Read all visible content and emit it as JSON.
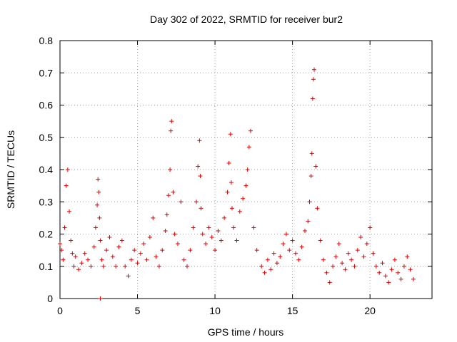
{
  "chart_data": {
    "type": "scatter",
    "title": "Day 302 of 2022, SRMTID for receiver bur2",
    "xlabel": "GPS time / hours",
    "ylabel": "SRMTID / TECUs",
    "xlim": [
      0,
      24
    ],
    "ylim": [
      0,
      0.8
    ],
    "x_ticks": [
      0,
      5,
      10,
      15,
      20
    ],
    "y_ticks": [
      0,
      0.1,
      0.2,
      0.3,
      0.4,
      0.5,
      0.6,
      0.7,
      0.8
    ],
    "x_tick_labels": [
      "0",
      "5",
      "10",
      "15",
      "20"
    ],
    "y_tick_labels": [
      "0",
      "0.1",
      "0.2",
      "0.3",
      "0.4",
      "0.5",
      "0.6",
      "0.7",
      "0.8"
    ],
    "grid": true,
    "marker": "plus",
    "color": "#e00000",
    "series": [
      {
        "name": "SRMTID",
        "x": [
          0.0,
          0.1,
          0.2,
          0.3,
          0.4,
          0.5,
          0.6,
          0.7,
          0.8,
          0.9,
          1.0,
          1.2,
          1.4,
          1.6,
          1.8,
          2.0,
          2.2,
          2.3,
          2.4,
          2.45,
          2.5,
          2.55,
          2.6,
          2.7,
          2.8,
          3.0,
          3.2,
          3.4,
          3.6,
          3.8,
          4.0,
          4.2,
          4.4,
          4.6,
          4.8,
          5.0,
          5.2,
          5.4,
          5.6,
          5.8,
          6.0,
          6.2,
          6.4,
          6.6,
          6.8,
          6.9,
          7.0,
          7.1,
          7.15,
          7.2,
          7.3,
          7.4,
          7.6,
          7.8,
          8.0,
          8.2,
          8.4,
          8.6,
          8.8,
          8.9,
          9.0,
          9.05,
          9.1,
          9.2,
          9.4,
          9.6,
          9.8,
          10.0,
          10.2,
          10.4,
          10.6,
          10.8,
          10.9,
          11.0,
          11.05,
          11.1,
          11.2,
          11.4,
          11.6,
          11.8,
          12.0,
          12.1,
          12.2,
          12.3,
          12.5,
          12.7,
          13.0,
          13.2,
          13.4,
          13.6,
          13.8,
          14.0,
          14.2,
          14.4,
          14.6,
          14.8,
          15.0,
          15.2,
          15.4,
          15.6,
          15.8,
          16.0,
          16.1,
          16.2,
          16.25,
          16.3,
          16.35,
          16.4,
          16.5,
          16.6,
          16.8,
          17.0,
          17.2,
          17.4,
          17.6,
          17.8,
          18.0,
          18.2,
          18.4,
          18.6,
          18.8,
          19.0,
          19.2,
          19.4,
          19.6,
          19.8,
          20.0,
          20.2,
          20.4,
          20.6,
          20.8,
          21.0,
          21.2,
          21.4,
          21.6,
          21.8,
          22.0,
          22.2,
          22.4,
          22.6,
          22.8
        ],
        "y": [
          0.17,
          0.15,
          0.12,
          0.22,
          0.35,
          0.4,
          0.27,
          0.18,
          0.14,
          0.1,
          0.13,
          0.09,
          0.11,
          0.14,
          0.12,
          0.1,
          0.16,
          0.22,
          0.29,
          0.37,
          0.33,
          0.25,
          0.18,
          0.12,
          0.1,
          0.15,
          0.19,
          0.13,
          0.1,
          0.16,
          0.18,
          0.1,
          0.07,
          0.12,
          0.15,
          0.11,
          0.14,
          0.17,
          0.12,
          0.19,
          0.25,
          0.13,
          0.1,
          0.15,
          0.21,
          0.26,
          0.32,
          0.4,
          0.52,
          0.55,
          0.33,
          0.2,
          0.17,
          0.3,
          0.12,
          0.1,
          0.15,
          0.22,
          0.3,
          0.41,
          0.49,
          0.38,
          0.28,
          0.2,
          0.17,
          0.22,
          0.19,
          0.15,
          0.21,
          0.18,
          0.25,
          0.33,
          0.42,
          0.51,
          0.36,
          0.28,
          0.22,
          0.18,
          0.27,
          0.31,
          0.35,
          0.4,
          0.47,
          0.52,
          0.22,
          0.15,
          0.1,
          0.08,
          0.12,
          0.09,
          0.14,
          0.11,
          0.13,
          0.17,
          0.2,
          0.15,
          0.18,
          0.14,
          0.12,
          0.16,
          0.21,
          0.24,
          0.3,
          0.38,
          0.45,
          0.62,
          0.68,
          0.71,
          0.41,
          0.28,
          0.18,
          0.12,
          0.08,
          0.05,
          0.1,
          0.13,
          0.17,
          0.11,
          0.09,
          0.14,
          0.12,
          0.1,
          0.15,
          0.19,
          0.13,
          0.17,
          0.22,
          0.14,
          0.1,
          0.08,
          0.11,
          0.07,
          0.05,
          0.09,
          0.12,
          0.08,
          0.06,
          0.1,
          0.13,
          0.09,
          0.06
        ]
      }
    ],
    "outliers": {
      "x": [
        2.6
      ],
      "y": [
        0.0
      ]
    }
  }
}
